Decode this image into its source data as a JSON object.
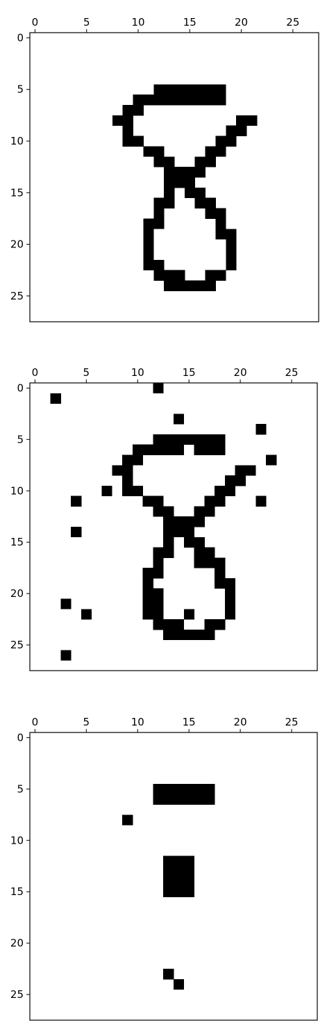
{
  "chart_data": [
    {
      "type": "heatmap",
      "title": "",
      "xlabel": "",
      "ylabel": "",
      "grid": false,
      "colors": {
        "on": "#000000",
        "off": "#ffffff"
      },
      "x_ticks": [
        "0",
        "5",
        "10",
        "15",
        "20",
        "25"
      ],
      "y_ticks": [
        "0",
        "5",
        "10",
        "15",
        "20",
        "25"
      ],
      "xlim": [
        -0.5,
        27.5
      ],
      "ylim": [
        27.5,
        -0.5
      ],
      "rows": 28,
      "cols": 28,
      "on_cells": [
        [
          5,
          12
        ],
        [
          5,
          13
        ],
        [
          5,
          14
        ],
        [
          5,
          15
        ],
        [
          5,
          16
        ],
        [
          5,
          17
        ],
        [
          5,
          18
        ],
        [
          6,
          10
        ],
        [
          6,
          11
        ],
        [
          6,
          12
        ],
        [
          6,
          13
        ],
        [
          6,
          14
        ],
        [
          6,
          15
        ],
        [
          6,
          16
        ],
        [
          6,
          17
        ],
        [
          6,
          18
        ],
        [
          7,
          9
        ],
        [
          7,
          10
        ],
        [
          8,
          8
        ],
        [
          8,
          9
        ],
        [
          8,
          20
        ],
        [
          8,
          21
        ],
        [
          9,
          9
        ],
        [
          9,
          19
        ],
        [
          9,
          20
        ],
        [
          10,
          9
        ],
        [
          10,
          10
        ],
        [
          10,
          18
        ],
        [
          10,
          19
        ],
        [
          11,
          11
        ],
        [
          11,
          12
        ],
        [
          11,
          17
        ],
        [
          11,
          18
        ],
        [
          12,
          12
        ],
        [
          12,
          13
        ],
        [
          12,
          16
        ],
        [
          12,
          17
        ],
        [
          13,
          13
        ],
        [
          13,
          14
        ],
        [
          13,
          15
        ],
        [
          13,
          16
        ],
        [
          14,
          13
        ],
        [
          14,
          14
        ],
        [
          14,
          15
        ],
        [
          15,
          13
        ],
        [
          15,
          15
        ],
        [
          15,
          16
        ],
        [
          16,
          12
        ],
        [
          16,
          13
        ],
        [
          16,
          16
        ],
        [
          16,
          17
        ],
        [
          17,
          12
        ],
        [
          17,
          17
        ],
        [
          17,
          18
        ],
        [
          18,
          11
        ],
        [
          18,
          12
        ],
        [
          18,
          18
        ],
        [
          19,
          11
        ],
        [
          19,
          18
        ],
        [
          19,
          19
        ],
        [
          20,
          11
        ],
        [
          20,
          19
        ],
        [
          21,
          11
        ],
        [
          21,
          19
        ],
        [
          22,
          11
        ],
        [
          22,
          12
        ],
        [
          22,
          19
        ],
        [
          23,
          12
        ],
        [
          23,
          13
        ],
        [
          23,
          14
        ],
        [
          23,
          17
        ],
        [
          23,
          18
        ],
        [
          24,
          13
        ],
        [
          24,
          14
        ],
        [
          24,
          15
        ],
        [
          24,
          16
        ],
        [
          24,
          17
        ]
      ]
    },
    {
      "type": "heatmap",
      "title": "",
      "xlabel": "",
      "ylabel": "",
      "grid": false,
      "colors": {
        "on": "#000000",
        "off": "#ffffff"
      },
      "x_ticks": [
        "0",
        "5",
        "10",
        "15",
        "20",
        "25"
      ],
      "y_ticks": [
        "0",
        "5",
        "10",
        "15",
        "20",
        "25"
      ],
      "xlim": [
        -0.5,
        27.5
      ],
      "ylim": [
        27.5,
        -0.5
      ],
      "rows": 28,
      "cols": 28,
      "on_cells": [
        [
          0,
          12
        ],
        [
          1,
          2
        ],
        [
          3,
          14
        ],
        [
          4,
          22
        ],
        [
          5,
          12
        ],
        [
          5,
          13
        ],
        [
          5,
          14
        ],
        [
          5,
          15
        ],
        [
          5,
          16
        ],
        [
          5,
          17
        ],
        [
          5,
          18
        ],
        [
          6,
          10
        ],
        [
          6,
          11
        ],
        [
          6,
          12
        ],
        [
          6,
          13
        ],
        [
          6,
          14
        ],
        [
          6,
          16
        ],
        [
          6,
          17
        ],
        [
          6,
          18
        ],
        [
          7,
          9
        ],
        [
          7,
          10
        ],
        [
          7,
          23
        ],
        [
          8,
          8
        ],
        [
          8,
          9
        ],
        [
          8,
          20
        ],
        [
          8,
          21
        ],
        [
          9,
          9
        ],
        [
          9,
          19
        ],
        [
          9,
          20
        ],
        [
          10,
          7
        ],
        [
          10,
          9
        ],
        [
          10,
          10
        ],
        [
          10,
          18
        ],
        [
          10,
          19
        ],
        [
          11,
          4
        ],
        [
          11,
          11
        ],
        [
          11,
          12
        ],
        [
          11,
          17
        ],
        [
          11,
          18
        ],
        [
          11,
          22
        ],
        [
          12,
          12
        ],
        [
          12,
          13
        ],
        [
          12,
          16
        ],
        [
          12,
          17
        ],
        [
          13,
          13
        ],
        [
          13,
          14
        ],
        [
          13,
          15
        ],
        [
          13,
          16
        ],
        [
          14,
          4
        ],
        [
          14,
          13
        ],
        [
          14,
          14
        ],
        [
          14,
          15
        ],
        [
          15,
          13
        ],
        [
          15,
          15
        ],
        [
          15,
          16
        ],
        [
          16,
          12
        ],
        [
          16,
          13
        ],
        [
          16,
          16
        ],
        [
          16,
          17
        ],
        [
          17,
          12
        ],
        [
          17,
          16
        ],
        [
          17,
          17
        ],
        [
          17,
          18
        ],
        [
          18,
          11
        ],
        [
          18,
          12
        ],
        [
          18,
          18
        ],
        [
          19,
          11
        ],
        [
          19,
          18
        ],
        [
          19,
          19
        ],
        [
          20,
          11
        ],
        [
          20,
          12
        ],
        [
          20,
          19
        ],
        [
          21,
          3
        ],
        [
          21,
          11
        ],
        [
          21,
          12
        ],
        [
          21,
          19
        ],
        [
          22,
          5
        ],
        [
          22,
          11
        ],
        [
          22,
          12
        ],
        [
          22,
          15
        ],
        [
          22,
          19
        ],
        [
          23,
          12
        ],
        [
          23,
          13
        ],
        [
          23,
          14
        ],
        [
          23,
          17
        ],
        [
          23,
          18
        ],
        [
          24,
          13
        ],
        [
          24,
          14
        ],
        [
          24,
          15
        ],
        [
          24,
          16
        ],
        [
          24,
          17
        ],
        [
          26,
          3
        ]
      ]
    },
    {
      "type": "heatmap",
      "title": "",
      "xlabel": "",
      "ylabel": "",
      "grid": false,
      "colors": {
        "on": "#000000",
        "off": "#ffffff"
      },
      "x_ticks": [
        "0",
        "5",
        "10",
        "15",
        "20",
        "25"
      ],
      "y_ticks": [
        "0",
        "5",
        "10",
        "15",
        "20",
        "25"
      ],
      "xlim": [
        -0.5,
        27.5
      ],
      "ylim": [
        27.5,
        -0.5
      ],
      "rows": 28,
      "cols": 28,
      "on_cells": [
        [
          5,
          12
        ],
        [
          5,
          13
        ],
        [
          5,
          14
        ],
        [
          5,
          15
        ],
        [
          5,
          16
        ],
        [
          5,
          17
        ],
        [
          6,
          12
        ],
        [
          6,
          13
        ],
        [
          6,
          14
        ],
        [
          6,
          15
        ],
        [
          6,
          16
        ],
        [
          6,
          17
        ],
        [
          8,
          9
        ],
        [
          12,
          13
        ],
        [
          12,
          14
        ],
        [
          12,
          15
        ],
        [
          13,
          13
        ],
        [
          13,
          14
        ],
        [
          13,
          15
        ],
        [
          14,
          13
        ],
        [
          14,
          14
        ],
        [
          14,
          15
        ],
        [
          15,
          13
        ],
        [
          15,
          14
        ],
        [
          15,
          15
        ],
        [
          23,
          13
        ],
        [
          24,
          14
        ]
      ]
    }
  ]
}
